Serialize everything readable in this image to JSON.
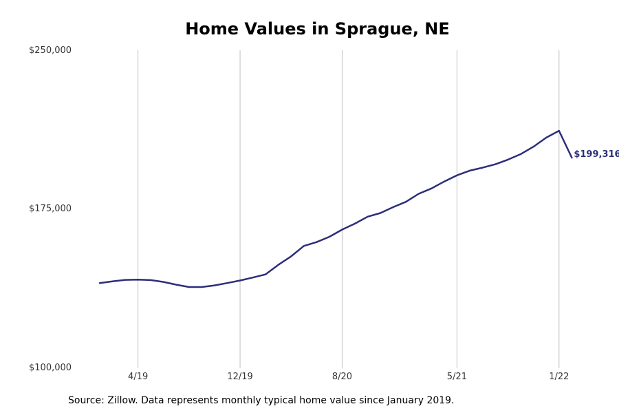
{
  "title": "Home Values in Sprague, NE",
  "source": "Source: Zillow. Data represents monthly typical home value since January 2019.",
  "chart_data": {
    "type": "line",
    "title": "Home Values in Sprague, NE",
    "xlabel": "",
    "ylabel": "",
    "ylim": [
      100000,
      250000
    ],
    "y_ticks": [
      "$100,000",
      "$175,000",
      "$250,000"
    ],
    "y_tick_values": [
      100000,
      175000,
      250000
    ],
    "x_ticks": [
      "4/19",
      "12/19",
      "8/20",
      "5/21",
      "1/22"
    ],
    "x_tick_dates": [
      "2019-04",
      "2019-12",
      "2020-08",
      "2021-05",
      "2022-01"
    ],
    "grid": "vertical lines at x ticks",
    "line_color": "#2c2e7a",
    "end_label": "$199,316",
    "series": [
      {
        "x": [
          "2019-01",
          "2019-02",
          "2019-03",
          "2019-04",
          "2019-05",
          "2019-06",
          "2019-07",
          "2019-08",
          "2019-09",
          "2019-10",
          "2019-11",
          "2019-12",
          "2020-01",
          "2020-02",
          "2020-03",
          "2020-04",
          "2020-05",
          "2020-06",
          "2020-07",
          "2020-08",
          "2020-09",
          "2020-10",
          "2020-11",
          "2020-12",
          "2021-01",
          "2021-02",
          "2021-03",
          "2021-04",
          "2021-05",
          "2021-06",
          "2021-07",
          "2021-08",
          "2021-09",
          "2021-10",
          "2021-11",
          "2021-12",
          "2022-01",
          "2022-02"
        ],
        "values": [
          140200,
          141000,
          141700,
          141800,
          141600,
          140700,
          139400,
          138300,
          138300,
          139100,
          140200,
          141400,
          142800,
          144300,
          148800,
          152800,
          157700,
          159500,
          162000,
          165400,
          168200,
          171500,
          173200,
          176000,
          178500,
          182300,
          184800,
          188100,
          191000,
          193200,
          194600,
          196200,
          198400,
          201000,
          204500,
          208800,
          212000,
          199316
        ]
      }
    ]
  }
}
